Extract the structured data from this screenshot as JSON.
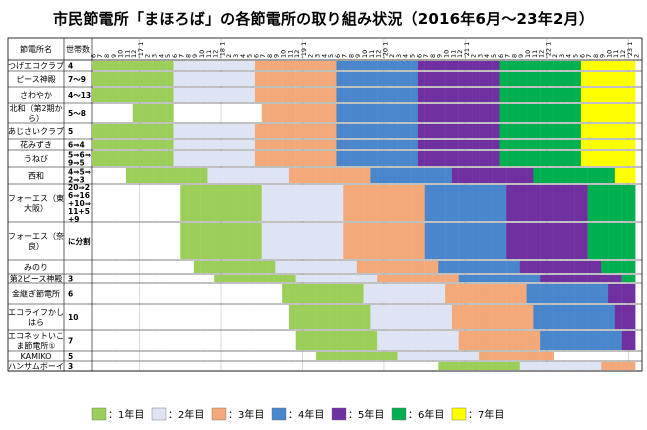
{
  "title": "市民節電所「まほろば」の各節電所の取り組み状況（2016年6月～23年2月）",
  "chart_data": {
    "type": "gantt",
    "header": {
      "station": "節電所名",
      "households": "世帯数"
    },
    "legend": [
      {
        "name": "：1年目",
        "color": "#9bcf5a"
      },
      {
        "name": "：2年目",
        "color": "#dfe4f4"
      },
      {
        "name": "：3年目",
        "color": "#f4a97b"
      },
      {
        "name": "：4年目",
        "color": "#4a86cb"
      },
      {
        "name": "：5年目",
        "color": "#7030a0"
      },
      {
        "name": "：6年目",
        "color": "#00b050"
      },
      {
        "name": "：7年目",
        "color": "#ffff00"
      }
    ],
    "months": [
      "6",
      "7",
      "8",
      "9",
      "10",
      "11",
      "12",
      "'17 1",
      "2",
      "3",
      "4",
      "5",
      "6",
      "7",
      "8",
      "9",
      "10",
      "11",
      "12",
      "'18 1",
      "2",
      "3",
      "4",
      "5",
      "6",
      "7",
      "8",
      "9",
      "10",
      "11",
      "12",
      "'19 1",
      "2",
      "3",
      "4",
      "5",
      "6",
      "7",
      "8",
      "9",
      "10",
      "11",
      "12",
      "'20 1",
      "2",
      "3",
      "4",
      "5",
      "6",
      "7",
      "8",
      "9",
      "10",
      "11",
      "12",
      "'21 1",
      "2",
      "3",
      "4",
      "5",
      "6",
      "7",
      "8",
      "9",
      "10",
      "11",
      "12",
      "'22 1",
      "2",
      "3",
      "4",
      "5",
      "6",
      "7",
      "8",
      "9",
      "10",
      "11",
      "12",
      "'23 1",
      "2"
    ],
    "rows": [
      {
        "name": "つげエコクラブ",
        "households": "4",
        "start_month": 1,
        "end_month": 80
      },
      {
        "name": "ピース神殿",
        "households": "7～9",
        "start_month": 1,
        "end_month": 80
      },
      {
        "name": "さわやか",
        "households": "4～13",
        "start_month": 1,
        "end_month": 80
      },
      {
        "name": "北和（第2期から）",
        "households": "5～8",
        "start_month": 1,
        "end_month": 80,
        "gaps": [
          [
            1,
            6
          ],
          [
            13,
            25
          ]
        ]
      },
      {
        "name": "あじさいクラブ",
        "households": "5",
        "start_month": 1,
        "end_month": 80
      },
      {
        "name": "花みずき",
        "households": "6⇒4",
        "start_month": 1,
        "end_month": 80
      },
      {
        "name": "うねび",
        "households": "5⇒6⇒9⇒5",
        "start_month": 1,
        "end_month": 80
      },
      {
        "name": "西和",
        "households": "4⇒5⇒2⇒3",
        "start_month": 6,
        "end_month": 80
      },
      {
        "name": "フォーエス（東大阪）",
        "households": "20⇒26⇒16+10⇒11+5+9",
        "start_month": 14,
        "end_month": 80
      },
      {
        "name": "フォーエス（奈良）",
        "households": "に分割",
        "start_month": 14,
        "end_month": 80
      },
      {
        "name": "みのり",
        "households": "",
        "start_month": 16,
        "end_month": 80
      },
      {
        "name": "第2ピース神殿",
        "households": "3",
        "start_month": 19,
        "end_month": 80
      },
      {
        "name": "金継ぎ節電所",
        "households": "6",
        "start_month": 29,
        "end_month": 80
      },
      {
        "name": "エコライフかしはら",
        "households": "10",
        "start_month": 30,
        "end_month": 80
      },
      {
        "name": "エコネットいこま節電所①",
        "households": "7",
        "start_month": 31,
        "end_month": 80
      },
      {
        "name": "KAMIKO",
        "households": "5",
        "start_month": 34,
        "end_month": 68
      },
      {
        "name": "ハンサムボーイ",
        "households": "3",
        "start_month": 52,
        "end_month": 80
      }
    ]
  }
}
